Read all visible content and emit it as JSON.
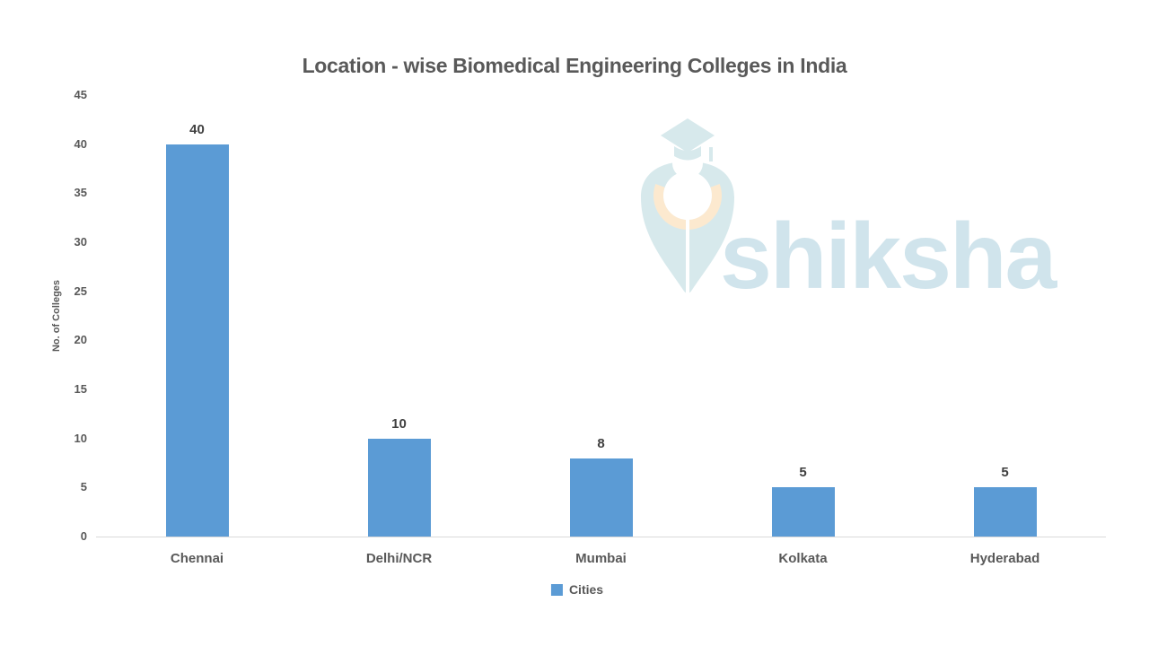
{
  "chart_data": {
    "type": "bar",
    "title": "Location - wise Biomedical Engineering Colleges in India",
    "categories": [
      "Chennai",
      "Delhi/NCR",
      "Mumbai",
      "Kolkata",
      "Hyderabad"
    ],
    "values": [
      40,
      10,
      8,
      5,
      5
    ],
    "series_name": "Cities",
    "xlabel": "",
    "ylabel": "No. of Colleges",
    "ylim": [
      0,
      45
    ],
    "yticks": [
      0,
      5,
      10,
      15,
      20,
      25,
      30,
      35,
      40,
      45
    ],
    "grid": false,
    "data_labels": true,
    "legend_position": "bottom",
    "bar_color": "#5b9bd5",
    "axis_line_color": "#d9d9d9",
    "title_color": "#595959",
    "axis_text_color": "#595959",
    "data_label_color": "#404040"
  },
  "legend": {
    "items": [
      {
        "label": "Cities",
        "color": "#5b9bd5"
      }
    ]
  },
  "watermark": {
    "brand_text": "shiksha",
    "logo_icon": "graduation-cap-pen-nib",
    "color_primary": "#d7e9ec",
    "color_accent": "#fce9cf",
    "text_color": "#d0e4ec"
  }
}
